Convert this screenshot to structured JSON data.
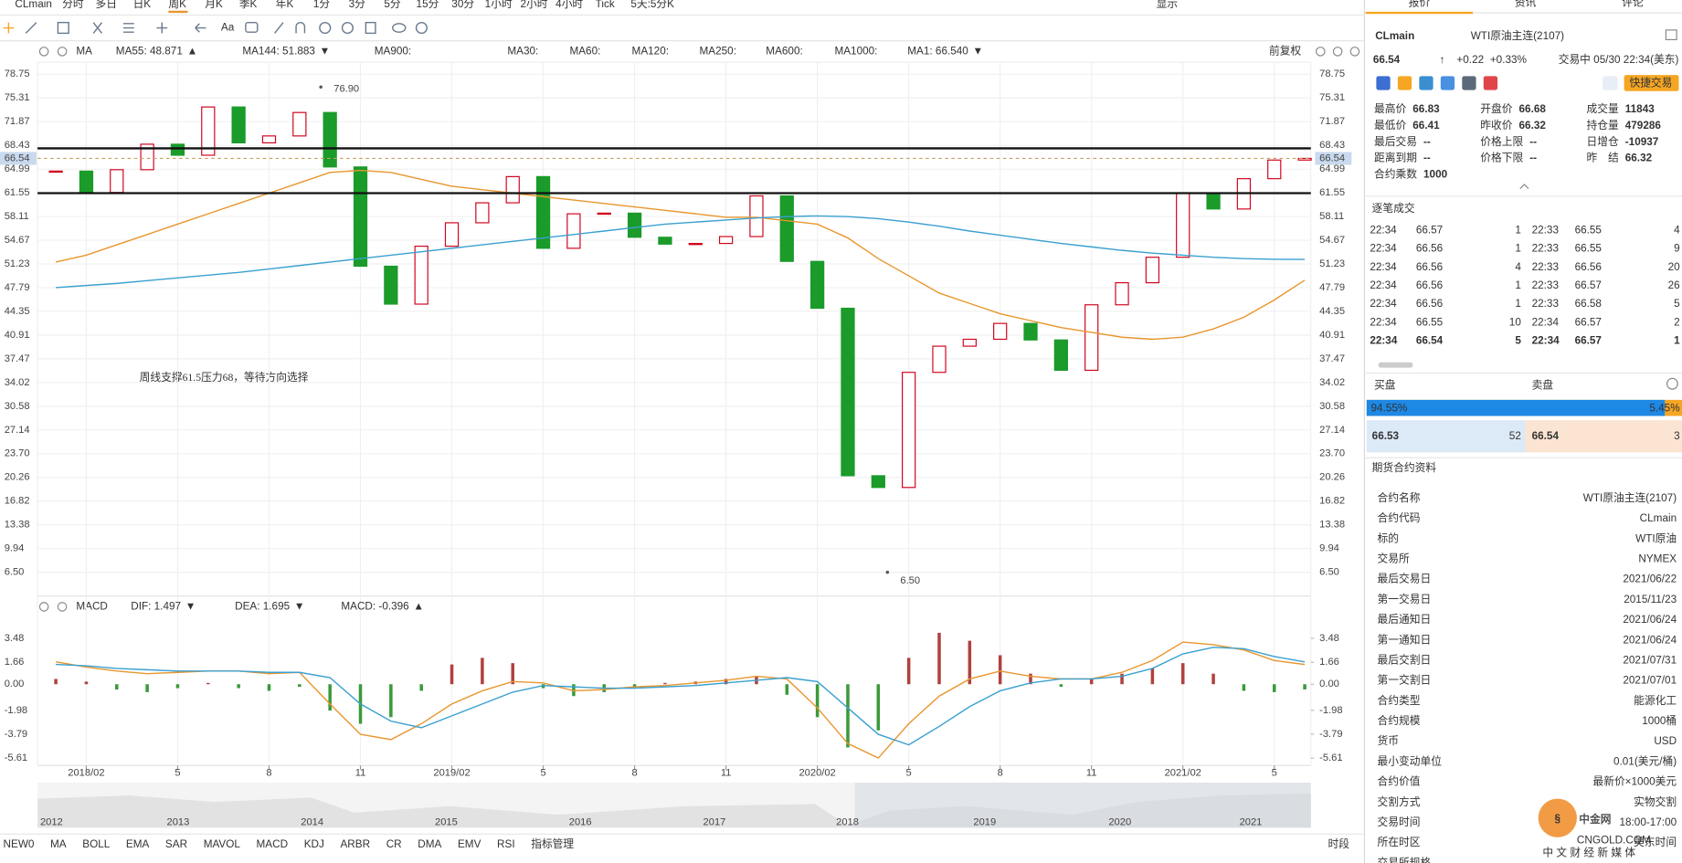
{
  "toolbar": {
    "symbol": "CLmain",
    "periods": [
      "分时",
      "多日",
      "日K",
      "周K",
      "月K",
      "季K",
      "年K",
      "1分",
      "3分",
      "5分",
      "15分",
      "30分",
      "1小时",
      "2小时",
      "4小时",
      "Tick",
      "5天:5分K"
    ],
    "active_period": 3,
    "display": "显示"
  },
  "indicator_bar": {
    "name": "MA",
    "adjust": "前复权",
    "items": [
      {
        "text": "MA55: 48.871",
        "color": "#e8962e",
        "dir": "▲",
        "dir_color": "#d0021b"
      },
      {
        "text": "MA144: 51.883",
        "color": "#3aa0d0",
        "dir": "▼",
        "dir_color": "#1a9b2a"
      },
      {
        "text": "MA900:",
        "color": "#d04fd0"
      },
      {
        "text": "MA30:",
        "color": "#b9dcef"
      },
      {
        "text": "MA60:",
        "color": "#bfe4ea"
      },
      {
        "text": "MA120:",
        "color": "#f4bfc8"
      },
      {
        "text": "MA250:",
        "color": "#bfeef0"
      },
      {
        "text": "MA600:",
        "color": "#f3dfa8"
      },
      {
        "text": "MA1000:",
        "color": "#c8c8c8"
      },
      {
        "text": "MA1: 66.540",
        "color": "#555555",
        "dir": "▼",
        "dir_color": "#1a9b2a"
      }
    ]
  },
  "chart_data": [
    {
      "type": "candlestick",
      "xlim": [
        -0.6,
        41.2
      ],
      "xticks": [
        {
          "value": 1,
          "label": "2018/02"
        },
        {
          "value": 4,
          "label": "5"
        },
        {
          "value": 7,
          "label": "8"
        },
        {
          "value": 10,
          "label": "11"
        },
        {
          "value": 13,
          "label": "2019/02"
        },
        {
          "value": 16,
          "label": "5"
        },
        {
          "value": 19,
          "label": "8"
        },
        {
          "value": 22,
          "label": "11"
        },
        {
          "value": 25,
          "label": "2020/02"
        },
        {
          "value": 28,
          "label": "5"
        },
        {
          "value": 31,
          "label": "8"
        },
        {
          "value": 34,
          "label": "11"
        },
        {
          "value": 37,
          "label": "2021/02"
        },
        {
          "value": 40,
          "label": "5"
        }
      ],
      "ylim": [
        3.2,
        80.5
      ],
      "yticks": [
        78.75,
        75.31,
        71.87,
        68.43,
        64.99,
        61.55,
        58.11,
        54.67,
        51.23,
        47.79,
        44.35,
        40.91,
        37.47,
        34.02,
        30.58,
        27.14,
        {
          "value": 23.7,
          "label": "23.70"
        },
        20.26,
        16.82,
        13.38,
        9.94,
        {
          "value": 6.5,
          "label": "6.50"
        }
      ],
      "grid": true,
      "current": 66.54,
      "levels": [
        68,
        61.5
      ],
      "annotation": "周线支撑61.5压力68，等待方向选择",
      "extremes": [
        {
          "x": 8.7,
          "value": 76.9,
          "label": "76.90"
        },
        {
          "x": 27.3,
          "value": 6.5,
          "label": "6.50"
        }
      ],
      "series": [
        {
          "style": "candle",
          "up_color": "#d0021b",
          "down_color": "#1a9b2a",
          "values": [
            64.7,
            61.6,
            64.9,
            68.6,
            67.0,
            74.0,
            68.8,
            69.8,
            73.2,
            65.3,
            50.9,
            45.4,
            53.8,
            57.2,
            60.1,
            63.9,
            53.5,
            58.5,
            58.6,
            55.1,
            54.1,
            54.2,
            55.2,
            61.1,
            51.6,
            44.8,
            20.5,
            18.8,
            35.5,
            39.3,
            40.3,
            42.6,
            40.2,
            35.8,
            45.3,
            48.5,
            52.2,
            61.5,
            59.2,
            63.6,
            66.3,
            66.54
          ]
        },
        {
          "style": "line",
          "color": "#e8962e",
          "values": [
            51.5,
            52.5,
            54,
            55.5,
            57,
            58.5,
            60,
            61.5,
            63,
            64.5,
            64.8,
            64.5,
            63.5,
            62.5,
            62,
            61.5,
            61,
            60.5,
            60,
            59.5,
            59,
            58.5,
            58,
            58,
            57.5,
            57,
            55,
            52,
            49.5,
            47,
            45.5,
            44,
            43,
            42,
            41.3,
            40.6,
            40.3,
            40.6,
            41.8,
            43.5,
            46,
            48.87
          ]
        },
        {
          "style": "line",
          "color": "#3aa0d0",
          "values": [
            47.8,
            48.1,
            48.4,
            48.8,
            49.2,
            49.6,
            50.0,
            50.5,
            51,
            51.5,
            52,
            52.5,
            53,
            53.5,
            54,
            54.5,
            55,
            55.5,
            56,
            56.5,
            57,
            57.3,
            57.6,
            57.9,
            58.1,
            58.2,
            58.1,
            57.8,
            57.3,
            56.7,
            56,
            55.4,
            54.8,
            54.2,
            53.7,
            53.2,
            52.8,
            52.5,
            52.2,
            52.0,
            51.9,
            51.88
          ]
        }
      ]
    },
    {
      "type": "macd",
      "title": "MACD",
      "legend": [
        {
          "text": "DIF: 1.497",
          "color": "#e8962e",
          "dir": "▼",
          "dir_color": "#1a9b2a"
        },
        {
          "text": "DEA: 1.695",
          "color": "#3aa0d0",
          "dir": "▼",
          "dir_color": "#1a9b2a"
        },
        {
          "text": "MACD: -0.396",
          "color": "#d04fd0",
          "dir": "▲",
          "dir_color": "#d0021b"
        }
      ],
      "xlim": [
        -0.6,
        41.2
      ],
      "ylim": [
        -6.0,
        4.9
      ],
      "yticks": [
        3.48,
        1.66,
        {
          "value": 0,
          "label": "0.00"
        },
        -1.98,
        -3.79,
        -5.61
      ],
      "series": [
        {
          "style": "bar",
          "up_color": "#b0413e",
          "down_color": "#3a9a3a",
          "values": [
            0.4,
            0.2,
            -0.4,
            -0.6,
            -0.3,
            0.1,
            -0.3,
            -0.5,
            -0.2,
            -2.0,
            -3.0,
            -2.5,
            -0.5,
            1.5,
            2.0,
            1.6,
            -0.3,
            -0.9,
            -0.6,
            -0.3,
            0.1,
            0.2,
            0.4,
            0.6,
            -0.8,
            -2.5,
            -4.8,
            -3.5,
            2.0,
            3.9,
            3.3,
            2.2,
            0.8,
            -0.2,
            0.4,
            0.8,
            1.2,
            1.6,
            0.8,
            -0.5,
            -0.6,
            -0.396
          ]
        },
        {
          "style": "line",
          "color": "#e8962e",
          "values": [
            1.7,
            1.3,
            1.0,
            0.8,
            0.9,
            1.0,
            1.0,
            0.8,
            0.9,
            -1.5,
            -3.8,
            -4.2,
            -3.0,
            -1.5,
            -0.5,
            0.2,
            0.1,
            -0.5,
            -0.4,
            -0.2,
            -0.1,
            0.1,
            0.3,
            0.6,
            0.4,
            -1.8,
            -4.5,
            -5.6,
            -3.0,
            -0.9,
            0.4,
            1.0,
            0.6,
            0.4,
            0.4,
            0.9,
            1.8,
            3.2,
            3.0,
            2.6,
            1.8,
            1.497
          ]
        },
        {
          "style": "line",
          "color": "#3aa0d0",
          "values": [
            1.5,
            1.4,
            1.2,
            1.1,
            1.0,
            1.0,
            1.0,
            0.9,
            0.9,
            0.5,
            -1.5,
            -2.8,
            -3.3,
            -2.4,
            -1.5,
            -0.6,
            -0.1,
            -0.2,
            -0.3,
            -0.3,
            -0.2,
            -0.1,
            0.1,
            0.3,
            0.5,
            0.2,
            -1.8,
            -3.8,
            -4.6,
            -3.2,
            -1.7,
            -0.5,
            0.1,
            0.4,
            0.4,
            0.6,
            1.2,
            2.3,
            2.8,
            2.7,
            2.1,
            1.695
          ]
        }
      ]
    }
  ],
  "overview_years": [
    "2012",
    "2013",
    "2014",
    "2015",
    "2016",
    "2017",
    "2018",
    "2019",
    "2020",
    "2021"
  ],
  "indicator_tabs": [
    "NEW0",
    "MA",
    "BOLL",
    "EMA",
    "SAR",
    "MAVOL",
    "MACD",
    "KDJ",
    "ARBR",
    "CR",
    "DMA",
    "EMV",
    "RSI",
    "指标管理"
  ],
  "active_indicators": [
    1,
    6,
    13
  ],
  "session": "时段",
  "quote": {
    "tabs": [
      "报价",
      "资讯",
      "评论"
    ],
    "symbol": "CLmain",
    "name": "WTI原油主连(2107)",
    "price": "66.54",
    "arrow": "↑",
    "change": "+0.22",
    "change_pct": "+0.33%",
    "status": "交易中 05/30 22:34(美东)",
    "quick_trade": "快捷交易",
    "stats": [
      [
        "最高价",
        "66.83"
      ],
      [
        "开盘价",
        "66.68"
      ],
      [
        "成交量",
        "11843"
      ],
      [
        "最低价",
        "66.41"
      ],
      [
        "昨收价",
        "66.32"
      ],
      [
        "持仓量",
        "479286"
      ],
      [
        "最后交易",
        "--"
      ],
      [
        "价格上限",
        "--"
      ],
      [
        "日增仓",
        "-10937"
      ],
      [
        "距离到期",
        "--"
      ],
      [
        "价格下限",
        "--"
      ],
      [
        "昨　结",
        "66.32"
      ],
      [
        "合约乘数",
        "1000"
      ]
    ],
    "ticks_title": "逐笔成交",
    "trades": [
      [
        "22:34",
        "66.57",
        "1",
        "22:33",
        "66.55",
        "4"
      ],
      [
        "22:34",
        "66.56",
        "1",
        "22:33",
        "66.55",
        "9"
      ],
      [
        "22:34",
        "66.56",
        "4",
        "22:33",
        "66.56",
        "20"
      ],
      [
        "22:34",
        "66.56",
        "1",
        "22:33",
        "66.57",
        "26"
      ],
      [
        "22:34",
        "66.56",
        "1",
        "22:33",
        "66.58",
        "5"
      ],
      [
        "22:34",
        "66.55",
        "10",
        "22:34",
        "66.57",
        "2"
      ],
      [
        "22:34",
        "66.54",
        "5",
        "22:34",
        "66.57",
        "1"
      ]
    ],
    "bid_label": "买盘",
    "ask_label": "卖盘",
    "bid_pct": {
      "value": 94.55,
      "label": "94.55%"
    },
    "ask_pct": {
      "value": 5.45,
      "label": "5.45%"
    },
    "bid": [
      "66.53",
      "52"
    ],
    "ask": [
      "66.54",
      "3"
    ],
    "spec_title": "期货合约资料",
    "specs": [
      [
        "合约名称",
        "WTI原油主连(2107)"
      ],
      [
        "合约代码",
        "CLmain"
      ],
      [
        "标的",
        "WTI原油"
      ],
      [
        "交易所",
        "NYMEX"
      ],
      [
        "最后交易日",
        "2021/06/22"
      ],
      [
        "第一交易日",
        "2015/11/23"
      ],
      [
        "最后通知日",
        "2021/06/24"
      ],
      [
        "第一通知日",
        "2021/06/24"
      ],
      [
        "最后交割日",
        "2021/07/31"
      ],
      [
        "第一交割日",
        "2021/07/01"
      ],
      [
        "合约类型",
        "能源化工"
      ],
      [
        "合约规模",
        "1000桶"
      ],
      [
        "货币",
        "USD"
      ],
      [
        "最小变动单位",
        "0.01(美元/桶)"
      ],
      [
        "合约价值",
        "最新价×1000美元"
      ],
      [
        "交割方式",
        "实物交割"
      ],
      [
        "交易时间",
        "18:00-17:00"
      ],
      [
        "所在时区",
        "美东时间"
      ],
      [
        "交易所规格",
        ""
      ]
    ]
  },
  "watermark": {
    "brand": "中金网",
    "site": "CNGOLD.COM",
    "slogan": "中 文 财 经 新 媒 体"
  }
}
